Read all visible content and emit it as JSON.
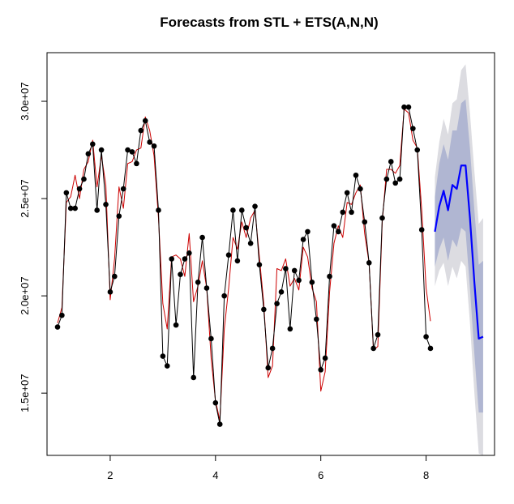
{
  "chart_data": {
    "type": "line",
    "title": "Forecasts from STL +  ETS(A,N,N)",
    "xlabel": "",
    "ylabel": "",
    "xlim": [
      0.8,
      9.3
    ],
    "ylim": [
      11800000,
      32500000
    ],
    "x_ticks": [
      2,
      4,
      6,
      8
    ],
    "x_tick_labels": [
      "2",
      "4",
      "6",
      "8"
    ],
    "y_ticks": [
      15000000,
      20000000,
      25000000,
      30000000
    ],
    "y_tick_labels": [
      "1.5e+07",
      "2.0e+07",
      "2.5e+07",
      "3.0e+07"
    ],
    "grid": false,
    "legend": "none",
    "colors": {
      "observed": "#000000",
      "fitted": "#cc0000",
      "forecast": "#0000ff",
      "band80": "#b0b6d2",
      "band95": "#dcdce1"
    },
    "series": [
      {
        "role": "observed",
        "style": "line-with-points",
        "x": [
          1.0,
          1.083,
          1.167,
          1.25,
          1.333,
          1.417,
          1.5,
          1.583,
          1.667,
          1.75,
          1.833,
          1.917,
          2.0,
          2.083,
          2.167,
          2.25,
          2.333,
          2.417,
          2.5,
          2.583,
          2.667,
          2.75,
          2.833,
          2.917,
          3.0,
          3.083,
          3.167,
          3.25,
          3.333,
          3.417,
          3.5,
          3.583,
          3.667,
          3.75,
          3.833,
          3.917,
          4.0,
          4.083,
          4.167,
          4.25,
          4.333,
          4.417,
          4.5,
          4.583,
          4.667,
          4.75,
          4.833,
          4.917,
          5.0,
          5.083,
          5.167,
          5.25,
          5.333,
          5.417,
          5.5,
          5.583,
          5.667,
          5.75,
          5.833,
          5.917,
          6.0,
          6.083,
          6.167,
          6.25,
          6.333,
          6.417,
          6.5,
          6.583,
          6.667,
          6.75,
          6.833,
          6.917,
          7.0,
          7.083,
          7.167,
          7.25,
          7.333,
          7.417,
          7.5,
          7.583,
          7.667,
          7.75,
          7.833,
          7.917,
          8.0,
          8.083
        ],
        "values": [
          18400000,
          19000000,
          25300000,
          24500000,
          24500000,
          25500000,
          26000000,
          27300000,
          27800000,
          24400000,
          27500000,
          24700000,
          20200000,
          21000000,
          24100000,
          25500000,
          27500000,
          27400000,
          26800000,
          28500000,
          29000000,
          27900000,
          27700000,
          24400000,
          16900000,
          16400000,
          21900000,
          18500000,
          21100000,
          21900000,
          22200000,
          15800000,
          20700000,
          23000000,
          20400000,
          17800000,
          14500000,
          13400000,
          20000000,
          22100000,
          24400000,
          21800000,
          24400000,
          23500000,
          22700000,
          24600000,
          21600000,
          19300000,
          16300000,
          17300000,
          19600000,
          20200000,
          21400000,
          18300000,
          21300000,
          20800000,
          22900000,
          23300000,
          20700000,
          18800000,
          16200000,
          16800000,
          21000000,
          23600000,
          23300000,
          24300000,
          25300000,
          24300000,
          26200000,
          25500000,
          23800000,
          21700000,
          17300000,
          18000000,
          24000000,
          26000000,
          26900000,
          25800000,
          26000000,
          29700000,
          29700000,
          28600000,
          27500000,
          23400000,
          17900000,
          17300000
        ]
      },
      {
        "role": "fitted",
        "style": "line",
        "x": [
          1.0,
          1.083,
          1.167,
          1.25,
          1.333,
          1.417,
          1.5,
          1.583,
          1.667,
          1.75,
          1.833,
          1.917,
          2.0,
          2.083,
          2.167,
          2.25,
          2.333,
          2.417,
          2.5,
          2.583,
          2.667,
          2.75,
          2.833,
          2.917,
          3.0,
          3.083,
          3.167,
          3.25,
          3.333,
          3.417,
          3.5,
          3.583,
          3.667,
          3.75,
          3.833,
          3.917,
          4.0,
          4.083,
          4.167,
          4.25,
          4.333,
          4.417,
          4.5,
          4.583,
          4.667,
          4.75,
          4.833,
          4.917,
          5.0,
          5.083,
          5.167,
          5.25,
          5.333,
          5.417,
          5.5,
          5.583,
          5.667,
          5.75,
          5.833,
          5.917,
          6.0,
          6.083,
          6.167,
          6.25,
          6.333,
          6.417,
          6.5,
          6.583,
          6.667,
          6.75,
          6.833,
          6.917,
          7.0,
          7.083,
          7.167,
          7.25,
          7.333,
          7.417,
          7.5,
          7.583,
          7.667,
          7.75,
          7.833,
          7.917,
          8.0,
          8.083
        ],
        "values": [
          18600000,
          19400000,
          24800000,
          25100000,
          26200000,
          25000000,
          26500000,
          26900000,
          28000000,
          25600000,
          27200000,
          25700000,
          19800000,
          21900000,
          25600000,
          24500000,
          26800000,
          26900000,
          27500000,
          27600000,
          29200000,
          28500000,
          27200000,
          24000000,
          19600000,
          18300000,
          22000000,
          22100000,
          21900000,
          21000000,
          23200000,
          19700000,
          20500000,
          21800000,
          20400000,
          16800000,
          14600000,
          13600000,
          18300000,
          20400000,
          23000000,
          22400000,
          23800000,
          23000000,
          24000000,
          24400000,
          22000000,
          19600000,
          15800000,
          16400000,
          21400000,
          21300000,
          21900000,
          20500000,
          20900000,
          20300000,
          22500000,
          22000000,
          20400000,
          19700000,
          15100000,
          16100000,
          20200000,
          22700000,
          23600000,
          23000000,
          24800000,
          24700000,
          25300000,
          25700000,
          23200000,
          21700000,
          17200000,
          17400000,
          23800000,
          26500000,
          26500000,
          26300000,
          26700000,
          29600000,
          29400000,
          28000000,
          27600000,
          24400000,
          20400000,
          18700000
        ]
      },
      {
        "role": "forecast",
        "style": "line",
        "x": [
          8.167,
          8.25,
          8.333,
          8.417,
          8.5,
          8.583,
          8.667,
          8.75,
          8.833,
          8.917,
          9.0,
          9.083
        ],
        "values": [
          23300000,
          24600000,
          25400000,
          24400000,
          25700000,
          25500000,
          26700000,
          26700000,
          24000000,
          20700000,
          17800000,
          17900000
        ]
      }
    ],
    "bands": [
      {
        "level": "95%",
        "x": [
          8.167,
          8.25,
          8.333,
          8.417,
          8.5,
          8.583,
          8.667,
          8.75,
          8.833,
          8.917,
          9.0,
          9.083
        ],
        "lower": [
          20500000,
          21300000,
          21700000,
          20500000,
          21500000,
          20900000,
          21800000,
          21500000,
          18600000,
          15000000,
          11900000,
          11800000
        ],
        "upper": [
          26100000,
          27900000,
          29100000,
          28300000,
          29900000,
          30100000,
          31600000,
          31900000,
          29400000,
          26400000,
          23700000,
          24000000
        ]
      },
      {
        "level": "80%",
        "x": [
          8.167,
          8.25,
          8.333,
          8.417,
          8.5,
          8.583,
          8.667,
          8.75,
          8.833,
          8.917,
          9.0,
          9.083
        ],
        "lower": [
          21500000,
          22400000,
          23000000,
          21800000,
          22900000,
          22500000,
          23500000,
          23300000,
          20400000,
          17000000,
          14000000,
          14000000
        ],
        "upper": [
          25100000,
          26800000,
          27800000,
          27000000,
          28500000,
          28500000,
          29900000,
          30100000,
          27600000,
          24400000,
          21600000,
          21800000
        ]
      }
    ]
  }
}
